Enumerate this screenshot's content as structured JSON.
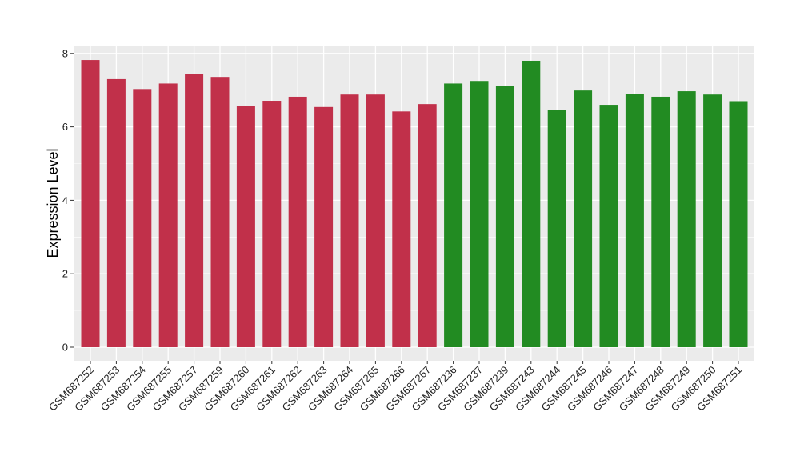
{
  "chart_data": {
    "type": "bar",
    "title": "",
    "xlabel": "",
    "ylabel": "Expression Level",
    "ylim": [
      0,
      8.2
    ],
    "yticks": [
      0,
      2,
      4,
      6,
      8
    ],
    "grid": true,
    "legend": "none",
    "colors": {
      "group1": "#C1304A",
      "group2": "#228B22",
      "panel": "#EBEBEB",
      "grid": "#FFFFFF"
    },
    "categories": [
      "GSM687252",
      "GSM687253",
      "GSM687254",
      "GSM687255",
      "GSM687257",
      "GSM687259",
      "GSM687260",
      "GSM687261",
      "GSM687262",
      "GSM687263",
      "GSM687264",
      "GSM687265",
      "GSM687266",
      "GSM687267",
      "GSM687236",
      "GSM687237",
      "GSM687239",
      "GSM687243",
      "GSM687244",
      "GSM687245",
      "GSM687246",
      "GSM687247",
      "GSM687248",
      "GSM687249",
      "GSM687250",
      "GSM687251"
    ],
    "values": [
      7.82,
      7.3,
      7.03,
      7.18,
      7.43,
      7.36,
      6.56,
      6.71,
      6.82,
      6.54,
      6.88,
      6.88,
      6.42,
      6.62,
      7.18,
      7.25,
      7.12,
      7.8,
      6.47,
      6.99,
      6.6,
      6.9,
      6.82,
      6.97,
      6.88,
      6.7
    ],
    "groups": [
      1,
      1,
      1,
      1,
      1,
      1,
      1,
      1,
      1,
      1,
      1,
      1,
      1,
      1,
      2,
      2,
      2,
      2,
      2,
      2,
      2,
      2,
      2,
      2,
      2,
      2
    ]
  }
}
